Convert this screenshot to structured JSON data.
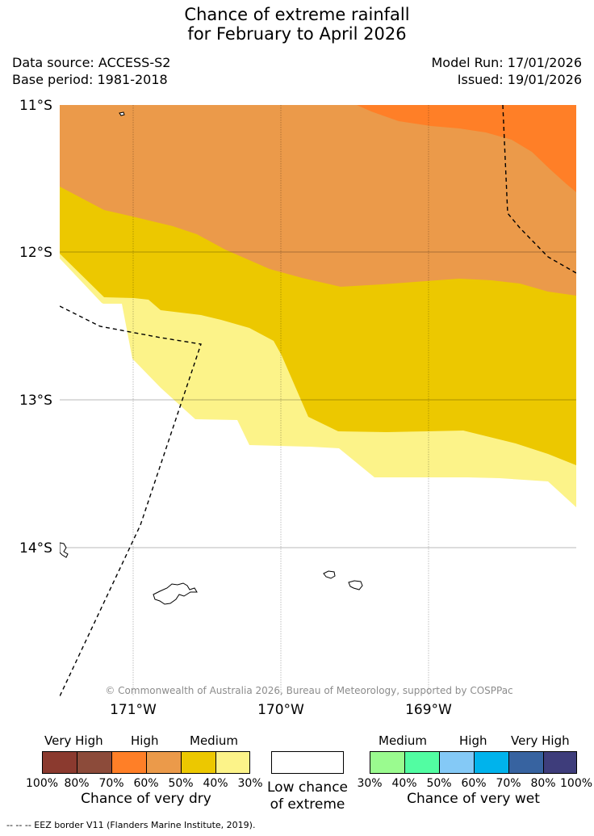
{
  "title": {
    "line1": "Chance of extreme rainfall",
    "line2": "for February to April 2026"
  },
  "meta": {
    "data_source": "Data source: ACCESS-S2",
    "base_period": "Base period: 1981-2018",
    "model_run": "Model Run: 17/01/2026",
    "issued": "Issued: 19/01/2026"
  },
  "map": {
    "latitude_labels": [
      "11°S",
      "12°S",
      "13°S",
      "14°S"
    ],
    "longitude_labels": [
      "171°W",
      "170°W",
      "169°W"
    ],
    "credit": "© Commonwealth of Australia 2026, Bureau of Meteorology, supported by COSPPac",
    "colors": {
      "very_dry_70_80": "#ff7f27",
      "very_dry_60_70": "#eb9a4a",
      "very_dry_50_60": "#ecc800",
      "very_dry_40_50": "#fcf389",
      "low_chance": "#ffffff",
      "eez_line": "#000000"
    }
  },
  "legend": {
    "dry": {
      "categories": [
        "Very High",
        "High",
        "Medium"
      ],
      "ticks": [
        "100%",
        "80%",
        "70%",
        "60%",
        "50%",
        "40%",
        "30%"
      ],
      "colors": [
        "#8b3a2f",
        "#8c4b3a",
        "#ff7f27",
        "#eb9a4a",
        "#ecc800",
        "#fcf389"
      ],
      "caption": "Chance of very dry"
    },
    "neutral": {
      "caption_line1": "Low chance",
      "caption_line2": "of extreme",
      "color": "#ffffff"
    },
    "wet": {
      "categories": [
        "Medium",
        "High",
        "Very High"
      ],
      "ticks": [
        "30%",
        "40%",
        "50%",
        "60%",
        "70%",
        "80%",
        "100%"
      ],
      "colors": [
        "#9afb8f",
        "#52fda2",
        "#84c9f6",
        "#00b3ec",
        "#3763a0",
        "#3e3d7b"
      ],
      "caption": "Chance of very wet"
    }
  },
  "footnote": "--  --  -- EEZ border V11 (Flanders Marine Institute, 2019)."
}
